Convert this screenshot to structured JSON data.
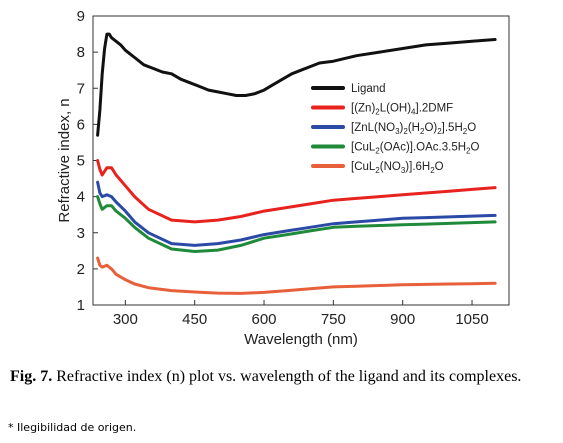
{
  "chart_data": {
    "type": "line",
    "xlabel": "Wavelength (nm)",
    "ylabel": "Refractive index, n",
    "xlim": [
      230,
      1130
    ],
    "ylim": [
      1,
      9
    ],
    "xticks": [
      300,
      450,
      600,
      750,
      900,
      1050
    ],
    "yticks": [
      1,
      2,
      3,
      4,
      5,
      6,
      7,
      8,
      9
    ],
    "grid": false,
    "legend_position": "right",
    "series": [
      {
        "name": "Ligand",
        "color": "#111111",
        "x": [
          240,
          245,
          250,
          255,
          260,
          265,
          270,
          280,
          290,
          300,
          320,
          340,
          360,
          380,
          400,
          420,
          440,
          460,
          480,
          500,
          520,
          540,
          560,
          580,
          600,
          620,
          640,
          660,
          680,
          700,
          720,
          750,
          800,
          850,
          900,
          950,
          1000,
          1050,
          1100
        ],
        "y": [
          5.7,
          6.4,
          7.4,
          8.1,
          8.5,
          8.5,
          8.4,
          8.3,
          8.2,
          8.05,
          7.85,
          7.65,
          7.55,
          7.45,
          7.4,
          7.25,
          7.15,
          7.05,
          6.95,
          6.9,
          6.85,
          6.8,
          6.8,
          6.85,
          6.95,
          7.1,
          7.25,
          7.4,
          7.5,
          7.6,
          7.7,
          7.75,
          7.9,
          8.0,
          8.1,
          8.2,
          8.25,
          8.3,
          8.35
        ]
      },
      {
        "name": "[(Zn)2L(OH)4].2DMF",
        "label_parts": [
          [
            "[(Zn)",
            "n"
          ],
          [
            "2",
            "s"
          ],
          [
            "L(OH)",
            "n"
          ],
          [
            "4",
            "s"
          ],
          [
            "].2DMF",
            "n"
          ]
        ],
        "color": "#e8231e",
        "x": [
          240,
          245,
          250,
          260,
          270,
          280,
          300,
          320,
          350,
          400,
          450,
          500,
          550,
          600,
          650,
          700,
          750,
          800,
          850,
          900,
          950,
          1000,
          1050,
          1100
        ],
        "y": [
          5.0,
          4.75,
          4.6,
          4.8,
          4.8,
          4.6,
          4.3,
          4.0,
          3.65,
          3.35,
          3.3,
          3.35,
          3.45,
          3.6,
          3.7,
          3.8,
          3.9,
          3.95,
          4.0,
          4.05,
          4.1,
          4.15,
          4.2,
          4.25
        ]
      },
      {
        "name": "[ZnL(NO3)2(H2O)2].5H2O",
        "label_parts": [
          [
            "[ZnL(NO",
            "n"
          ],
          [
            "3",
            "s"
          ],
          [
            ")",
            "n"
          ],
          [
            "2",
            "s"
          ],
          [
            "(H",
            "n"
          ],
          [
            "2",
            "s"
          ],
          [
            "O)",
            "n"
          ],
          [
            "2",
            "s"
          ],
          [
            "].5H",
            "n"
          ],
          [
            "2",
            "s"
          ],
          [
            "O",
            "n"
          ]
        ],
        "color": "#2b4aa6",
        "x": [
          240,
          245,
          250,
          260,
          270,
          280,
          300,
          320,
          350,
          400,
          450,
          500,
          550,
          600,
          650,
          700,
          750,
          800,
          850,
          900,
          950,
          1000,
          1050,
          1100
        ],
        "y": [
          4.4,
          4.1,
          4.0,
          4.05,
          4.0,
          3.85,
          3.6,
          3.3,
          3.0,
          2.7,
          2.65,
          2.7,
          2.8,
          2.95,
          3.05,
          3.15,
          3.25,
          3.3,
          3.35,
          3.4,
          3.42,
          3.44,
          3.46,
          3.48
        ]
      },
      {
        "name": "[CuL2(OAc)].OAc.3.5H2O",
        "label_parts": [
          [
            "[CuL",
            "n"
          ],
          [
            "2",
            "s"
          ],
          [
            "(OAc)].OAc.3.5H",
            "n"
          ],
          [
            "2",
            "s"
          ],
          [
            "O",
            "n"
          ]
        ],
        "color": "#1f8a3a",
        "x": [
          240,
          245,
          250,
          260,
          270,
          280,
          300,
          320,
          350,
          400,
          450,
          500,
          550,
          600,
          650,
          700,
          750,
          800,
          850,
          900,
          950,
          1000,
          1050,
          1100
        ],
        "y": [
          4.0,
          3.8,
          3.65,
          3.75,
          3.75,
          3.6,
          3.4,
          3.15,
          2.85,
          2.55,
          2.48,
          2.52,
          2.65,
          2.85,
          2.95,
          3.05,
          3.15,
          3.18,
          3.2,
          3.22,
          3.24,
          3.26,
          3.28,
          3.3
        ]
      },
      {
        "name": "[CuL2(NO3)].6H2O",
        "label_parts": [
          [
            "[CuL",
            "n"
          ],
          [
            "2",
            "s"
          ],
          [
            "(NO",
            "n"
          ],
          [
            "3",
            "s"
          ],
          [
            ")].6H",
            "n"
          ],
          [
            "2",
            "s"
          ],
          [
            "O",
            "n"
          ]
        ],
        "color": "#e8603a",
        "x": [
          240,
          245,
          250,
          260,
          270,
          280,
          300,
          320,
          350,
          400,
          450,
          500,
          550,
          600,
          650,
          700,
          750,
          800,
          850,
          900,
          950,
          1000,
          1050,
          1100
        ],
        "y": [
          2.3,
          2.1,
          2.05,
          2.1,
          2.0,
          1.85,
          1.7,
          1.58,
          1.48,
          1.4,
          1.36,
          1.33,
          1.32,
          1.35,
          1.4,
          1.45,
          1.5,
          1.52,
          1.54,
          1.56,
          1.57,
          1.58,
          1.59,
          1.6
        ]
      }
    ]
  },
  "caption": {
    "label": "Fig. 7.",
    "text": " Refractive index (n) plot vs. wavelength of the ligand and its complexes."
  },
  "footnote": "* Ilegibilidad de origen."
}
